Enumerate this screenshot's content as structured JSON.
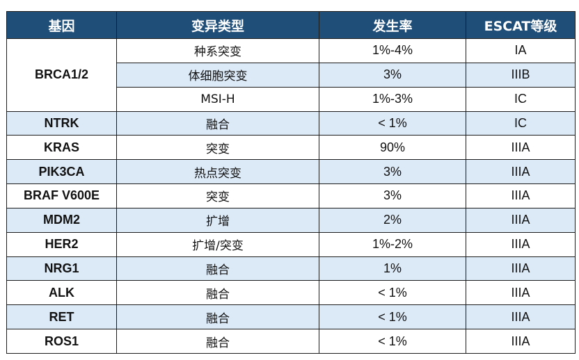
{
  "table": {
    "headers": [
      "基因",
      "变异类型",
      "发生率",
      "ESCAT等级"
    ],
    "rows": [
      {
        "gene": "BRCA1/2",
        "type": "种系突变",
        "rate": "1%-4%",
        "level": "IA"
      },
      {
        "gene": "",
        "type": "体细胞突变",
        "rate": "3%",
        "level": "IIIB"
      },
      {
        "gene": "",
        "type": "MSI-H",
        "rate": "1%-3%",
        "level": "IC"
      },
      {
        "gene": "NTRK",
        "type": "融合",
        "rate": "< 1%",
        "level": "IC"
      },
      {
        "gene": "KRAS",
        "type": "突变",
        "rate": "90%",
        "level": "IIIA"
      },
      {
        "gene": "PIK3CA",
        "type": "热点突变",
        "rate": "3%",
        "level": "IIIA"
      },
      {
        "gene": "BRAF V600E",
        "type": "突变",
        "rate": "3%",
        "level": "IIIA"
      },
      {
        "gene": "MDM2",
        "type": "扩增",
        "rate": "2%",
        "level": "IIIA"
      },
      {
        "gene": "HER2",
        "type": "扩增/突变",
        "rate": "1%-2%",
        "level": "IIIA"
      },
      {
        "gene": "NRG1",
        "type": "融合",
        "rate": "1%",
        "level": "IIIA"
      },
      {
        "gene": "ALK",
        "type": "融合",
        "rate": "< 1%",
        "level": "IIIA"
      },
      {
        "gene": "RET",
        "type": "融合",
        "rate": "< 1%",
        "level": "IIIA"
      },
      {
        "gene": "ROS1",
        "type": "融合",
        "rate": "< 1%",
        "level": "IIIA"
      }
    ]
  },
  "colors": {
    "header_bg": "#1f4e79",
    "shade_bg": "#dce9f7",
    "border": "#1b1b1b"
  }
}
